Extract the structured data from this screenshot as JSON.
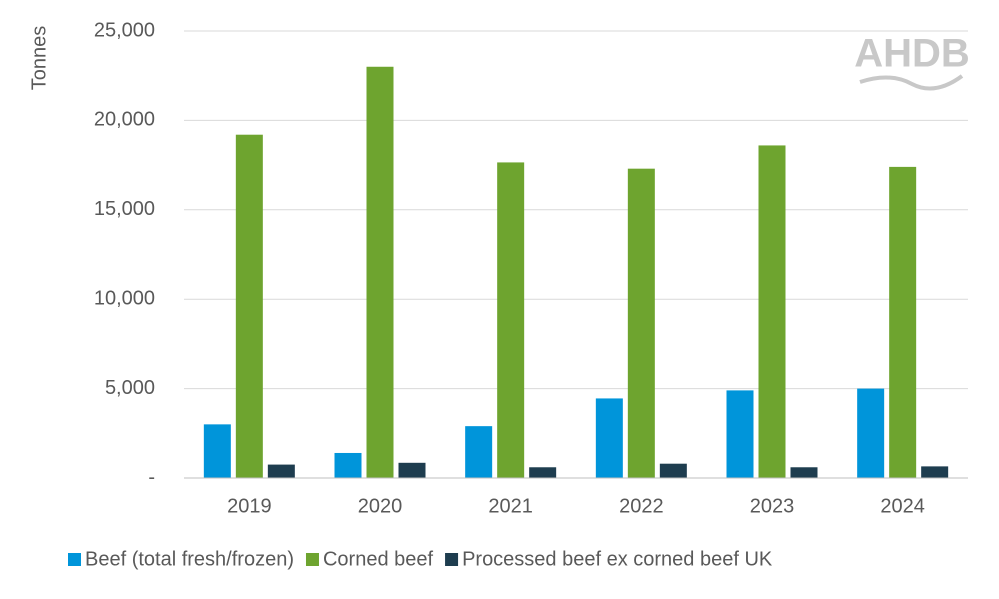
{
  "chart_data": {
    "type": "bar",
    "y_label": "Tonnes",
    "logo": "AHDB",
    "categories": [
      "2019",
      "2020",
      "2021",
      "2022",
      "2023",
      "2024"
    ],
    "series": [
      {
        "name": "Beef (total fresh/frozen)",
        "color": "#0095da",
        "values": [
          3000,
          1400,
          2900,
          4450,
          4900,
          5000
        ]
      },
      {
        "name": "Corned beef",
        "color": "#6ea42f",
        "values": [
          19200,
          23000,
          17650,
          17300,
          18600,
          17400
        ]
      },
      {
        "name": "Processed beef ex corned beef UK",
        "color": "#1e3d4f",
        "values": [
          750,
          850,
          600,
          800,
          600,
          650
        ]
      }
    ],
    "ylim": [
      0,
      25000
    ],
    "yticks": [
      {
        "value": 0,
        "label": "-"
      },
      {
        "value": 5000,
        "label": "5,000"
      },
      {
        "value": 10000,
        "label": "10,000"
      },
      {
        "value": 15000,
        "label": "15,000"
      },
      {
        "value": 20000,
        "label": "20,000"
      },
      {
        "value": 25000,
        "label": "25,000"
      }
    ],
    "grid": true,
    "legend": "bottom"
  }
}
